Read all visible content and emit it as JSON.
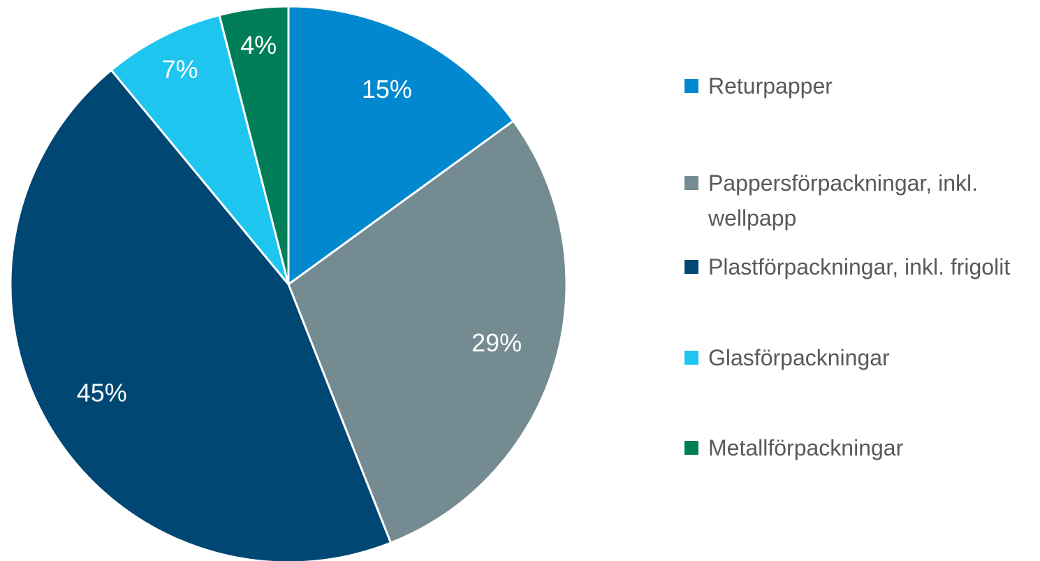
{
  "chart_data": {
    "type": "pie",
    "categories": [
      "Returpapper",
      "Pappersförpackningar, inkl. wellpapp",
      "Plastförpackningar, inkl. frigolit",
      "Glasförpackningar",
      "Metallförpackningar"
    ],
    "values": [
      15,
      29,
      45,
      7,
      4
    ],
    "value_labels": [
      "15%",
      "29%",
      "45%",
      "7%",
      "4%"
    ],
    "colors": [
      "#0288cf",
      "#758b92",
      "#004773",
      "#1dc5ef",
      "#007e58"
    ],
    "legend": "right"
  }
}
